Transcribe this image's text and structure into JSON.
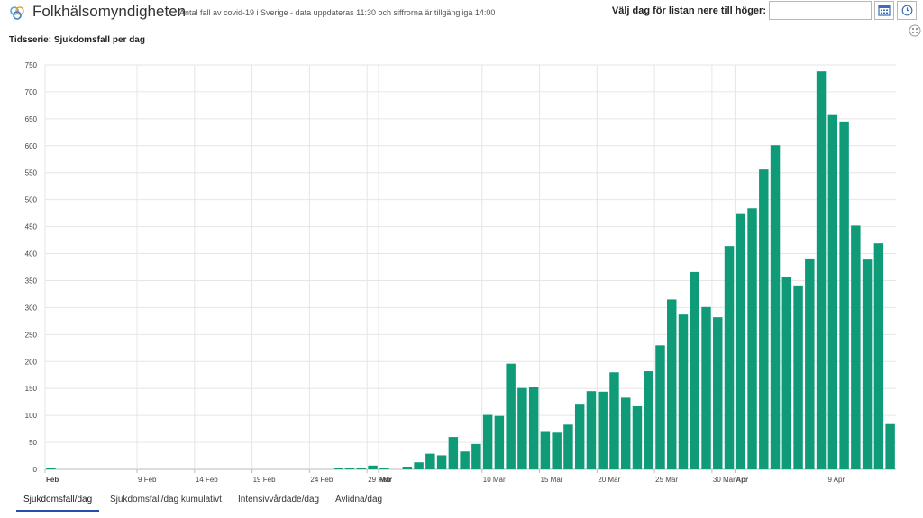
{
  "header": {
    "title": "Folkhälsomyndigheten",
    "subtitle": "Antal fall av covid-19 i Sverige - data uppdateras 11:30 och siffrorna är tillgängliga 14:00",
    "date_label": "Välj dag för listan nere till höger:",
    "date_value": "",
    "logo_icon": "folkhalsomyndigheten-logo-icon",
    "calendar_icon": "calendar-icon",
    "clock_icon": "clock-icon",
    "more_icon": "more-options-icon"
  },
  "chart_title": "Tidsserie: Sjukdomsfall per dag",
  "tabs": [
    {
      "label": "Sjukdomsfall/dag",
      "active": true
    },
    {
      "label": "Sjukdomsfall/dag kumulativt",
      "active": false
    },
    {
      "label": "Intensivvårdade/dag",
      "active": false
    },
    {
      "label": "Avlidna/dag",
      "active": false
    }
  ],
  "colors": {
    "bar": "#0f9b78",
    "grid": "#e6e6e6",
    "active_tab": "#2a4fa8"
  },
  "chart_data": {
    "type": "bar",
    "title": "Tidsserie: Sjukdomsfall per dag",
    "xlabel": "",
    "ylabel": "",
    "ylim": [
      0,
      750
    ],
    "yticks": [
      0,
      50,
      100,
      150,
      200,
      250,
      300,
      350,
      400,
      450,
      500,
      550,
      600,
      650,
      700,
      750
    ],
    "grid": true,
    "legend": "none",
    "x_start": "2020-02-01",
    "x_end": "2020-04-14",
    "xticks": [
      {
        "date": "2020-02-01",
        "label": "Feb",
        "bold": true
      },
      {
        "date": "2020-02-09",
        "label": "9 Feb",
        "bold": false
      },
      {
        "date": "2020-02-14",
        "label": "14 Feb",
        "bold": false
      },
      {
        "date": "2020-02-19",
        "label": "19 Feb",
        "bold": false
      },
      {
        "date": "2020-02-24",
        "label": "24 Feb",
        "bold": false
      },
      {
        "date": "2020-02-29",
        "label": "29 Feb",
        "bold": false
      },
      {
        "date": "2020-03-01",
        "label": "Mar",
        "bold": true
      },
      {
        "date": "2020-03-10",
        "label": "10 Mar",
        "bold": false
      },
      {
        "date": "2020-03-15",
        "label": "15 Mar",
        "bold": false
      },
      {
        "date": "2020-03-20",
        "label": "20 Mar",
        "bold": false
      },
      {
        "date": "2020-03-25",
        "label": "25 Mar",
        "bold": false
      },
      {
        "date": "2020-03-30",
        "label": "30 Mar",
        "bold": false
      },
      {
        "date": "2020-04-01",
        "label": "Apr",
        "bold": true
      },
      {
        "date": "2020-04-09",
        "label": "9 Apr",
        "bold": false
      }
    ],
    "series": [
      {
        "dates": [
          "2020-02-01",
          "2020-02-02",
          "2020-02-03",
          "2020-02-04",
          "2020-02-05",
          "2020-02-06",
          "2020-02-07",
          "2020-02-08",
          "2020-02-09",
          "2020-02-10",
          "2020-02-11",
          "2020-02-12",
          "2020-02-13",
          "2020-02-14",
          "2020-02-15",
          "2020-02-16",
          "2020-02-17",
          "2020-02-18",
          "2020-02-19",
          "2020-02-20",
          "2020-02-21",
          "2020-02-22",
          "2020-02-23",
          "2020-02-24",
          "2020-02-25",
          "2020-02-26",
          "2020-02-27",
          "2020-02-28",
          "2020-02-29",
          "2020-03-01",
          "2020-03-02",
          "2020-03-03",
          "2020-03-04",
          "2020-03-05",
          "2020-03-06",
          "2020-03-07",
          "2020-03-08",
          "2020-03-09",
          "2020-03-10",
          "2020-03-11",
          "2020-03-12",
          "2020-03-13",
          "2020-03-14",
          "2020-03-15",
          "2020-03-16",
          "2020-03-17",
          "2020-03-18",
          "2020-03-19",
          "2020-03-20",
          "2020-03-21",
          "2020-03-22",
          "2020-03-23",
          "2020-03-24",
          "2020-03-25",
          "2020-03-26",
          "2020-03-27",
          "2020-03-28",
          "2020-03-29",
          "2020-03-30",
          "2020-03-31",
          "2020-04-01",
          "2020-04-02",
          "2020-04-03",
          "2020-04-04",
          "2020-04-05",
          "2020-04-06",
          "2020-04-07",
          "2020-04-08",
          "2020-04-09",
          "2020-04-10",
          "2020-04-11",
          "2020-04-12",
          "2020-04-13",
          "2020-04-14"
        ],
        "values": [
          1,
          0,
          0,
          0,
          0,
          0,
          0,
          0,
          0,
          0,
          0,
          0,
          0,
          0,
          0,
          0,
          0,
          0,
          0,
          0,
          0,
          0,
          0,
          0,
          0,
          1,
          1,
          1,
          7,
          3,
          0,
          5,
          13,
          29,
          26,
          60,
          33,
          47,
          101,
          99,
          196,
          151,
          152,
          71,
          68,
          83,
          120,
          145,
          144,
          180,
          133,
          117,
          182,
          230,
          315,
          287,
          366,
          301,
          282,
          414,
          475,
          484,
          556,
          601,
          357,
          341,
          391,
          738,
          657,
          645,
          452,
          389,
          419,
          84
        ]
      }
    ]
  }
}
